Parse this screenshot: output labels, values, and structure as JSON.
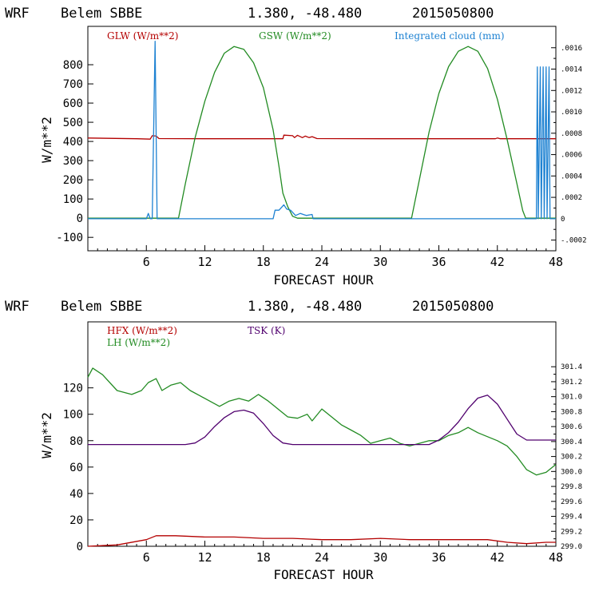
{
  "chart_data": [
    {
      "type": "line",
      "header": {
        "model": "WRF",
        "station": "Belem SBBE",
        "coords": "1.380, -48.480",
        "date": "2015050800"
      },
      "xlabel": "FORECAST HOUR",
      "ylabel": "W/m**2",
      "xlim": [
        0,
        48
      ],
      "ylim": [
        -170,
        1000
      ],
      "xticks": [
        "6",
        "12",
        "18",
        "24",
        "30",
        "36",
        "42",
        "48"
      ],
      "yticks": [
        "-100",
        "0",
        "100",
        "200",
        "300",
        "400",
        "500",
        "600",
        "700",
        "800"
      ],
      "y2lim": [
        -0.0003,
        0.0018
      ],
      "y2ticks": [
        "-.0002",
        "0",
        ".0002",
        ".0004",
        ".0006",
        ".0008",
        ".0010",
        ".0012",
        ".0014",
        ".0016"
      ],
      "series": [
        {
          "name": "GLW (W/m**2)",
          "key": "glw",
          "color": "#b40000",
          "axis": "left",
          "points": [
            [
              0,
              418
            ],
            [
              5,
              414
            ],
            [
              6.4,
              412
            ],
            [
              6.6,
              430
            ],
            [
              7,
              428
            ],
            [
              7.3,
              415
            ],
            [
              12,
              414
            ],
            [
              18,
              414
            ],
            [
              20,
              414
            ],
            [
              20.1,
              433
            ],
            [
              21,
              430
            ],
            [
              21.2,
              420
            ],
            [
              21.5,
              432
            ],
            [
              22,
              420
            ],
            [
              22.3,
              428
            ],
            [
              22.7,
              420
            ],
            [
              23,
              425
            ],
            [
              23.5,
              415
            ],
            [
              30,
              414
            ],
            [
              36,
              414
            ],
            [
              41.8,
              414
            ],
            [
              42,
              418
            ],
            [
              42.3,
              414
            ],
            [
              48,
              414
            ]
          ]
        },
        {
          "name": "GSW (W/m**2)",
          "key": "gsw",
          "color": "#228b22",
          "axis": "left",
          "points": [
            [
              0,
              0
            ],
            [
              9.3,
              0
            ],
            [
              10,
              180
            ],
            [
              11,
              420
            ],
            [
              12,
              610
            ],
            [
              13,
              760
            ],
            [
              14,
              860
            ],
            [
              15,
              895
            ],
            [
              16,
              880
            ],
            [
              17,
              810
            ],
            [
              18,
              680
            ],
            [
              19,
              460
            ],
            [
              19.6,
              270
            ],
            [
              20,
              130
            ],
            [
              20.5,
              60
            ],
            [
              21,
              10
            ],
            [
              21.5,
              0
            ],
            [
              33.2,
              0
            ],
            [
              34,
              200
            ],
            [
              35,
              450
            ],
            [
              36,
              650
            ],
            [
              37,
              790
            ],
            [
              38,
              870
            ],
            [
              39,
              895
            ],
            [
              40,
              870
            ],
            [
              41,
              780
            ],
            [
              42,
              620
            ],
            [
              43,
              410
            ],
            [
              44,
              180
            ],
            [
              44.6,
              40
            ],
            [
              44.9,
              0
            ],
            [
              48,
              0
            ]
          ]
        },
        {
          "name": "Integrated cloud (mm)",
          "key": "cloud",
          "color": "#1e82d2",
          "axis": "right",
          "points": [
            [
              0,
              0
            ],
            [
              6,
              0
            ],
            [
              6.2,
              5e-05
            ],
            [
              6.4,
              0
            ],
            [
              6.6,
              0
            ],
            [
              6.9,
              0.00166
            ],
            [
              7.1,
              0
            ],
            [
              19,
              0
            ],
            [
              19.2,
              8e-05
            ],
            [
              19.6,
              8e-05
            ],
            [
              20.1,
              0.00013
            ],
            [
              20.4,
              9e-05
            ],
            [
              20.8,
              8e-05
            ],
            [
              21.3,
              3e-05
            ],
            [
              21.8,
              5e-05
            ],
            [
              22.4,
              3e-05
            ],
            [
              23,
              4e-05
            ],
            [
              23.1,
              0
            ],
            [
              46,
              0
            ],
            [
              46.1,
              0.00142
            ],
            [
              46.2,
              0
            ],
            [
              46.4,
              0.00142
            ],
            [
              46.5,
              0
            ],
            [
              46.7,
              0.00142
            ],
            [
              46.8,
              0
            ],
            [
              47,
              0.00142
            ],
            [
              47.1,
              0
            ],
            [
              47.3,
              0.00142
            ],
            [
              47.4,
              0
            ],
            [
              48,
              0
            ]
          ]
        }
      ]
    },
    {
      "type": "line",
      "header": {
        "model": "WRF",
        "station": "Belem SBBE",
        "coords": "1.380, -48.480",
        "date": "2015050800"
      },
      "xlabel": "FORECAST HOUR",
      "ylabel": "W/m**2",
      "xlim": [
        0,
        48
      ],
      "ylim": [
        0,
        170
      ],
      "xticks": [
        "6",
        "12",
        "18",
        "24",
        "30",
        "36",
        "42",
        "48"
      ],
      "yticks": [
        "0",
        "20",
        "40",
        "60",
        "80",
        "100",
        "120"
      ],
      "y2lim": [
        299.0,
        302.0
      ],
      "y2ticks": [
        "299.0",
        "299.2",
        "299.4",
        "299.6",
        "299.8",
        "300.0",
        "300.2",
        "300.4",
        "300.6",
        "300.8",
        "301.0",
        "301.2",
        "301.4"
      ],
      "series": [
        {
          "name": "HFX (W/m**2)",
          "key": "hfx",
          "color": "#b40000",
          "axis": "left",
          "points": [
            [
              0,
              0
            ],
            [
              3,
              1
            ],
            [
              6,
              5
            ],
            [
              7,
              8
            ],
            [
              9,
              8
            ],
            [
              12,
              7
            ],
            [
              15,
              7
            ],
            [
              18,
              6
            ],
            [
              21,
              6
            ],
            [
              24,
              5
            ],
            [
              27,
              5
            ],
            [
              30,
              6
            ],
            [
              33,
              5
            ],
            [
              36,
              5
            ],
            [
              39,
              5
            ],
            [
              41,
              5
            ],
            [
              43,
              3
            ],
            [
              45,
              2
            ],
            [
              47,
              3
            ],
            [
              48,
              3
            ]
          ]
        },
        {
          "name": "LH (W/m**2)",
          "key": "lh",
          "color": "#228b22",
          "axis": "left",
          "points": [
            [
              0,
              128
            ],
            [
              0.5,
              135
            ],
            [
              1.5,
              130
            ],
            [
              3,
              118
            ],
            [
              4.5,
              115
            ],
            [
              5.5,
              118
            ],
            [
              6.2,
              124
            ],
            [
              7,
              127
            ],
            [
              7.6,
              118
            ],
            [
              8.5,
              122
            ],
            [
              9.5,
              124
            ],
            [
              10.5,
              118
            ],
            [
              11.5,
              114
            ],
            [
              12.5,
              110
            ],
            [
              13.5,
              106
            ],
            [
              14.5,
              110
            ],
            [
              15.5,
              112
            ],
            [
              16.5,
              110
            ],
            [
              17.5,
              115
            ],
            [
              18.5,
              110
            ],
            [
              19.5,
              104
            ],
            [
              20.5,
              98
            ],
            [
              21.5,
              97
            ],
            [
              22.5,
              100
            ],
            [
              23,
              95
            ],
            [
              24,
              104
            ],
            [
              25,
              98
            ],
            [
              26,
              92
            ],
            [
              27,
              88
            ],
            [
              28,
              84
            ],
            [
              29,
              78
            ],
            [
              30,
              80
            ],
            [
              31,
              82
            ],
            [
              32,
              78
            ],
            [
              33,
              76
            ],
            [
              34,
              78
            ],
            [
              35,
              80
            ],
            [
              36,
              80
            ],
            [
              37,
              84
            ],
            [
              38,
              86
            ],
            [
              39,
              90
            ],
            [
              40,
              86
            ],
            [
              41,
              83
            ],
            [
              42,
              80
            ],
            [
              43,
              76
            ],
            [
              44,
              68
            ],
            [
              45,
              58
            ],
            [
              46,
              54
            ],
            [
              47,
              56
            ],
            [
              48,
              62
            ]
          ]
        },
        {
          "name": "TSK (K)",
          "key": "tsk",
          "color": "#50006e",
          "axis": "right",
          "points": [
            [
              0,
              300.36
            ],
            [
              5,
              300.36
            ],
            [
              10,
              300.36
            ],
            [
              11,
              300.38
            ],
            [
              12,
              300.46
            ],
            [
              13,
              300.6
            ],
            [
              14,
              300.72
            ],
            [
              15,
              300.8
            ],
            [
              16,
              300.82
            ],
            [
              17,
              300.78
            ],
            [
              18,
              300.64
            ],
            [
              19,
              300.48
            ],
            [
              20,
              300.38
            ],
            [
              21,
              300.36
            ],
            [
              24,
              300.36
            ],
            [
              28,
              300.36
            ],
            [
              32,
              300.36
            ],
            [
              35,
              300.36
            ],
            [
              36,
              300.42
            ],
            [
              37,
              300.52
            ],
            [
              38,
              300.66
            ],
            [
              39,
              300.84
            ],
            [
              40,
              300.98
            ],
            [
              41,
              301.02
            ],
            [
              42,
              300.9
            ],
            [
              43,
              300.7
            ],
            [
              44,
              300.5
            ],
            [
              45,
              300.42
            ],
            [
              48,
              300.42
            ]
          ]
        }
      ]
    }
  ]
}
